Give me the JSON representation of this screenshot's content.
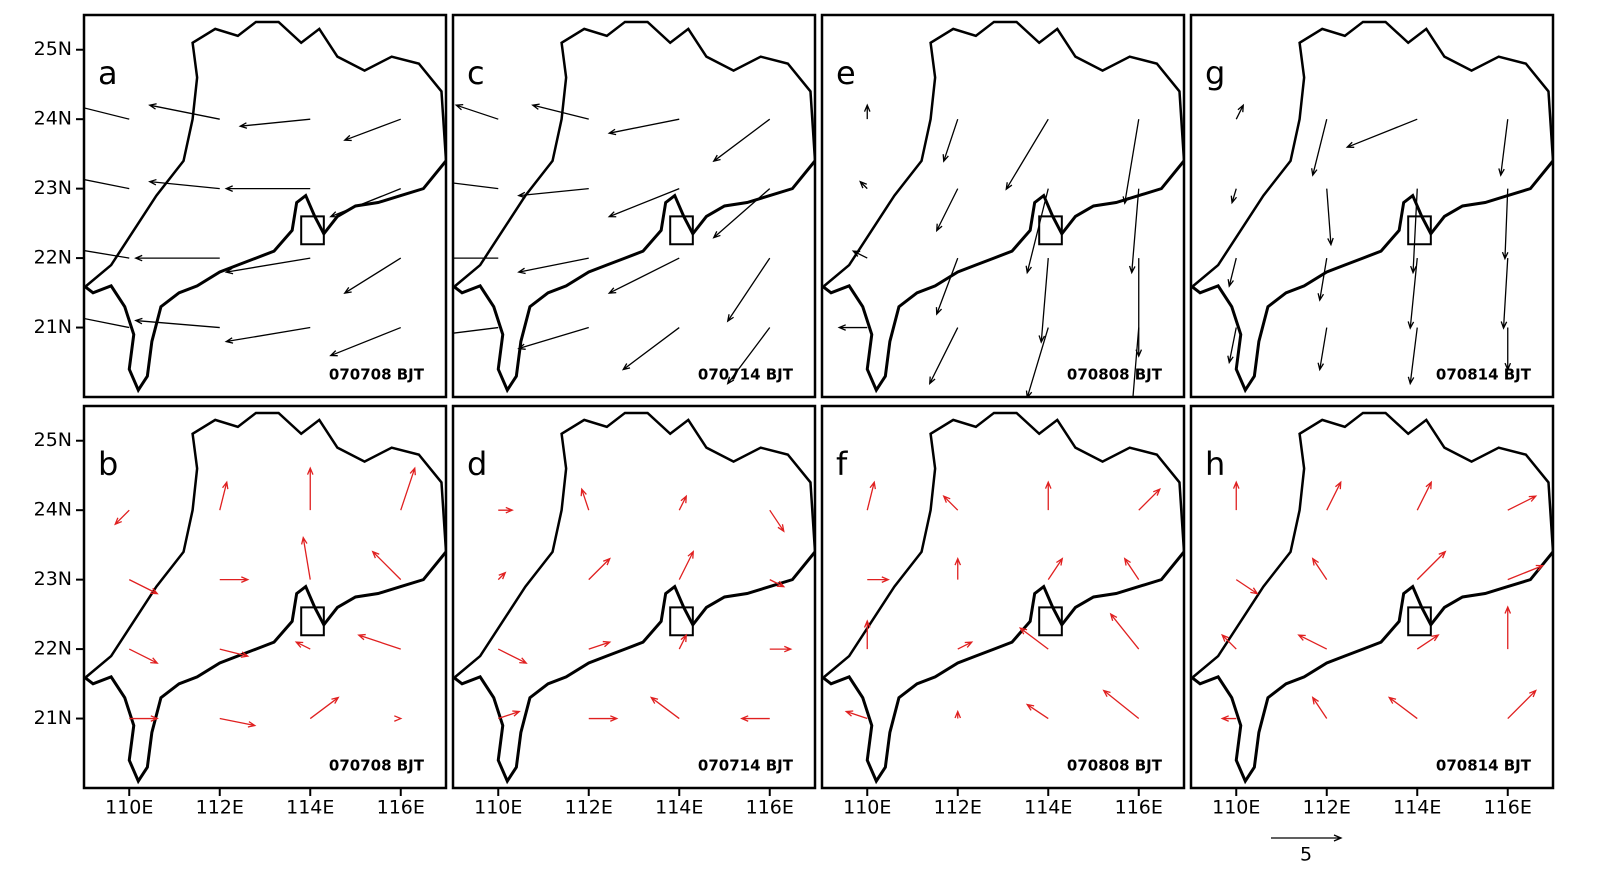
{
  "chart_data": [
    {
      "type": "quiver",
      "label": "a",
      "stamp": "070708 BJT",
      "color": "#000000",
      "xlim": [
        109,
        117
      ],
      "ylim": [
        20,
        25.5
      ],
      "yticks": [
        {
          "value": 21,
          "label": "21N"
        },
        {
          "value": 22,
          "label": "22N"
        },
        {
          "value": 23,
          "label": "23N"
        },
        {
          "value": 24,
          "label": "24N"
        },
        {
          "value": 25,
          "label": "25N"
        }
      ],
      "x": [
        110,
        112,
        114,
        116
      ],
      "y": [
        21,
        22,
        23,
        24
      ],
      "u": [
        [
          -5,
          -6,
          -6,
          -5
        ],
        [
          -6,
          -6,
          -6,
          -4
        ],
        [
          -5,
          -5,
          -6,
          -5
        ],
        [
          -4,
          -5,
          -5,
          -4
        ]
      ],
      "v": [
        [
          1,
          0.5,
          -1,
          -2
        ],
        [
          1,
          0,
          -1,
          -2.5
        ],
        [
          1,
          0.5,
          0,
          -2
        ],
        [
          1,
          1,
          -0.5,
          -1.5
        ]
      ]
    },
    {
      "type": "quiver",
      "label": "c",
      "stamp": "070714 BJT",
      "color": "#000000",
      "xlim": [
        109,
        117
      ],
      "ylim": [
        20,
        25.5
      ],
      "x": [
        110,
        112,
        114,
        116
      ],
      "y": [
        21,
        22,
        23,
        24
      ],
      "u": [
        [
          -4,
          -5,
          -4,
          -3
        ],
        [
          -5,
          -5,
          -5,
          -3
        ],
        [
          -4,
          -5,
          -5,
          -4
        ],
        [
          -3,
          -4,
          -5,
          -4
        ]
      ],
      "v": [
        [
          -0.5,
          -1.5,
          -3,
          -4
        ],
        [
          0,
          -1,
          -2.5,
          -4.5
        ],
        [
          0.5,
          -0.5,
          -2,
          -3.5
        ],
        [
          1,
          1,
          -1,
          -3
        ]
      ]
    },
    {
      "type": "quiver",
      "label": "e",
      "stamp": "070808 BJT",
      "color": "#000000",
      "xlim": [
        109,
        117
      ],
      "ylim": [
        20,
        25.5
      ],
      "x": [
        110,
        112,
        114,
        116
      ],
      "y": [
        21,
        22,
        23,
        24
      ],
      "u": [
        [
          -2,
          -2,
          -1.5,
          -0.5
        ],
        [
          -1,
          -1.5,
          -0.5,
          0
        ],
        [
          -0.5,
          -1.5,
          -1.5,
          -0.5
        ],
        [
          0,
          -1,
          -3,
          -1
        ]
      ],
      "v": [
        [
          0,
          -4,
          -5,
          -6
        ],
        [
          0.5,
          -4,
          -6,
          -7
        ],
        [
          0.5,
          -3,
          -6,
          -6
        ],
        [
          1,
          -3,
          -5,
          -6
        ]
      ]
    },
    {
      "type": "quiver",
      "label": "g",
      "stamp": "070814 BJT",
      "color": "#000000",
      "xlim": [
        109,
        117
      ],
      "ylim": [
        20,
        25.5
      ],
      "x": [
        110,
        112,
        114,
        116
      ],
      "y": [
        21,
        22,
        23,
        24
      ],
      "u": [
        [
          -0.5,
          -0.5,
          -0.5,
          0
        ],
        [
          -0.5,
          -0.5,
          -0.5,
          -0.3
        ],
        [
          -0.3,
          0.3,
          -0.3,
          -0.2
        ],
        [
          0.5,
          -1,
          -5,
          -0.5
        ]
      ],
      "v": [
        [
          -2.5,
          -3,
          -4,
          -3
        ],
        [
          -2,
          -3,
          -5,
          -5
        ],
        [
          -1,
          -4,
          -6,
          -5
        ],
        [
          1,
          -4,
          -2,
          -4
        ]
      ]
    },
    {
      "type": "quiver",
      "label": "b",
      "stamp": "070708 BJT",
      "color": "#e02020",
      "xlim": [
        109,
        117
      ],
      "ylim": [
        20,
        25.5
      ],
      "yticks": [
        {
          "value": 21,
          "label": "21N"
        },
        {
          "value": 22,
          "label": "22N"
        },
        {
          "value": 23,
          "label": "23N"
        },
        {
          "value": 24,
          "label": "24N"
        },
        {
          "value": 25,
          "label": "25N"
        }
      ],
      "xticks": [
        {
          "value": 110,
          "label": "110E"
        },
        {
          "value": 112,
          "label": "112E"
        },
        {
          "value": 114,
          "label": "114E"
        },
        {
          "value": 116,
          "label": "116E"
        }
      ],
      "x": [
        110,
        112,
        114,
        116
      ],
      "y": [
        21,
        22,
        23,
        24
      ],
      "u": [
        [
          2,
          2.5,
          2,
          0
        ],
        [
          2,
          2,
          -1,
          -3
        ],
        [
          2,
          2,
          -0.5,
          -2
        ],
        [
          -1,
          0.5,
          0,
          1
        ]
      ],
      "v": [
        [
          0,
          -0.5,
          1.5,
          0
        ],
        [
          -1,
          -0.5,
          0.5,
          1
        ],
        [
          -1,
          0,
          3,
          2
        ],
        [
          -1,
          2,
          3,
          3
        ]
      ]
    },
    {
      "type": "quiver",
      "label": "d",
      "stamp": "070714 BJT",
      "color": "#e02020",
      "xlim": [
        109,
        117
      ],
      "ylim": [
        20,
        25.5
      ],
      "xticks": [
        {
          "value": 110,
          "label": "110E"
        },
        {
          "value": 112,
          "label": "112E"
        },
        {
          "value": 114,
          "label": "114E"
        },
        {
          "value": 116,
          "label": "116E"
        }
      ],
      "x": [
        110,
        112,
        114,
        116
      ],
      "y": [
        21,
        22,
        23,
        24
      ],
      "u": [
        [
          1.5,
          2,
          -2,
          -2
        ],
        [
          2,
          1.5,
          0.5,
          1.5
        ],
        [
          0.5,
          1.5,
          1,
          1
        ],
        [
          1,
          -0.5,
          0.5,
          1
        ]
      ],
      "v": [
        [
          0.5,
          0,
          1.5,
          0
        ],
        [
          -1,
          0.5,
          1,
          0
        ],
        [
          0.5,
          1.5,
          2,
          -0.5
        ],
        [
          0,
          1.5,
          1,
          -1.5
        ]
      ]
    },
    {
      "type": "quiver",
      "label": "f",
      "stamp": "070808 BJT",
      "color": "#e02020",
      "xlim": [
        109,
        117
      ],
      "ylim": [
        20,
        25.5
      ],
      "xticks": [
        {
          "value": 110,
          "label": "110E"
        },
        {
          "value": 112,
          "label": "112E"
        },
        {
          "value": 114,
          "label": "114E"
        },
        {
          "value": 116,
          "label": "116E"
        }
      ],
      "x": [
        110,
        112,
        114,
        116
      ],
      "y": [
        21,
        22,
        23,
        24
      ],
      "u": [
        [
          -1.5,
          0,
          -1.5,
          -2.5
        ],
        [
          0,
          1,
          -2,
          -2
        ],
        [
          1.5,
          0,
          1,
          -1
        ],
        [
          0.5,
          -1,
          0,
          1.5
        ]
      ],
      "v": [
        [
          0.5,
          0.5,
          1,
          2
        ],
        [
          2,
          0.5,
          1.5,
          2.5
        ],
        [
          0,
          1.5,
          1.5,
          1.5
        ],
        [
          2,
          1,
          2,
          1.5
        ]
      ]
    },
    {
      "type": "quiver",
      "label": "h",
      "stamp": "070814 BJT",
      "color": "#e02020",
      "xlim": [
        109,
        117
      ],
      "ylim": [
        20,
        25.5
      ],
      "xticks": [
        {
          "value": 110,
          "label": "110E"
        },
        {
          "value": 112,
          "label": "112E"
        },
        {
          "value": 114,
          "label": "114E"
        },
        {
          "value": 116,
          "label": "116E"
        }
      ],
      "x": [
        110,
        112,
        114,
        116
      ],
      "y": [
        21,
        22,
        23,
        24
      ],
      "u": [
        [
          -1,
          -1,
          -2,
          2
        ],
        [
          -1,
          -2,
          1.5,
          0
        ],
        [
          1.5,
          -1,
          2,
          2.5
        ],
        [
          0,
          1,
          1,
          2
        ]
      ],
      "v": [
        [
          0,
          1.5,
          1.5,
          2
        ],
        [
          1,
          1,
          1,
          3
        ],
        [
          -1,
          1.5,
          2,
          1
        ],
        [
          2,
          2,
          2,
          1
        ]
      ],
      "key": 5
    }
  ]
}
